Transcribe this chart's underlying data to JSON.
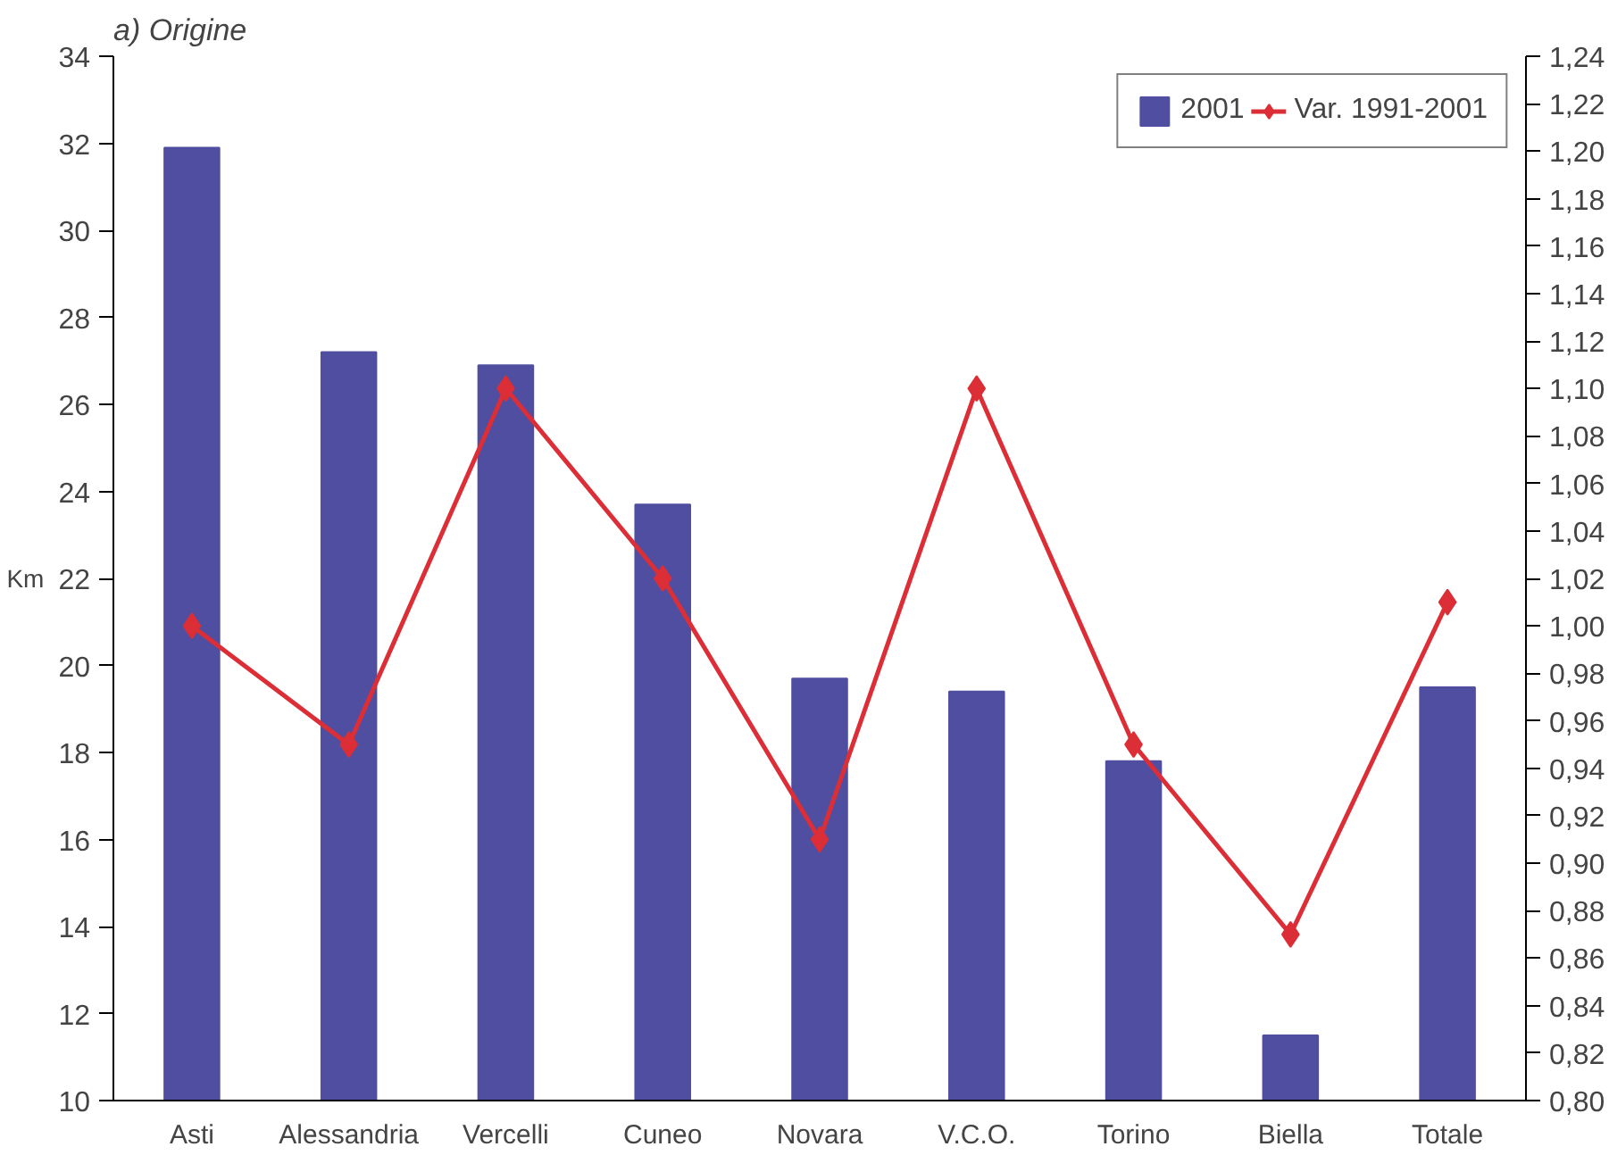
{
  "chart_data": {
    "type": "bar",
    "title": "a) Origine",
    "ylabel": "Km",
    "categories": [
      "Asti",
      "Alessandria",
      "Vercelli",
      "Cuneo",
      "Novara",
      "V.C.O.",
      "Torino",
      "Biella",
      "Totale"
    ],
    "series": [
      {
        "name": "2001",
        "color": "#4f4ea0",
        "values": [
          31.9,
          27.2,
          26.9,
          23.7,
          19.7,
          19.4,
          17.8,
          11.5,
          19.5
        ]
      },
      {
        "name": "Var. 1991-2001",
        "type": "line",
        "axis": "y2",
        "color": "#dc2e36",
        "marker": "diamond",
        "values": [
          1.0,
          0.95,
          1.1,
          1.02,
          0.91,
          1.1,
          0.95,
          0.87,
          1.01
        ]
      }
    ],
    "ylim": [
      10,
      34
    ],
    "yticks": [
      10,
      12,
      14,
      16,
      18,
      20,
      22,
      24,
      26,
      28,
      30,
      32,
      34
    ],
    "y2lim": [
      0.8,
      1.24
    ],
    "y2ticks": [
      {
        "value": 0.8,
        "label": "0,80"
      },
      {
        "value": 0.82,
        "label": "0,82"
      },
      {
        "value": 0.84,
        "label": "0,84"
      },
      {
        "value": 0.86,
        "label": "0,86"
      },
      {
        "value": 0.88,
        "label": "0,88"
      },
      {
        "value": 0.9,
        "label": "0,90"
      },
      {
        "value": 0.92,
        "label": "0,92"
      },
      {
        "value": 0.94,
        "label": "0,94"
      },
      {
        "value": 0.96,
        "label": "0,96"
      },
      {
        "value": 0.98,
        "label": "0,98"
      },
      {
        "value": 1.0,
        "label": "1,00"
      },
      {
        "value": 1.02,
        "label": "1,02"
      },
      {
        "value": 1.04,
        "label": "1,04"
      },
      {
        "value": 1.06,
        "label": "1,06"
      },
      {
        "value": 1.08,
        "label": "1,08"
      },
      {
        "value": 1.1,
        "label": "1,10"
      },
      {
        "value": 1.12,
        "label": "1,12"
      },
      {
        "value": 1.14,
        "label": "1,14"
      },
      {
        "value": 1.16,
        "label": "1,16"
      },
      {
        "value": 1.18,
        "label": "1,18"
      },
      {
        "value": 1.2,
        "label": "1,20"
      },
      {
        "value": 1.22,
        "label": "1,22"
      },
      {
        "value": 1.24,
        "label": "1,24"
      }
    ],
    "grid": false,
    "legend": "top right"
  }
}
